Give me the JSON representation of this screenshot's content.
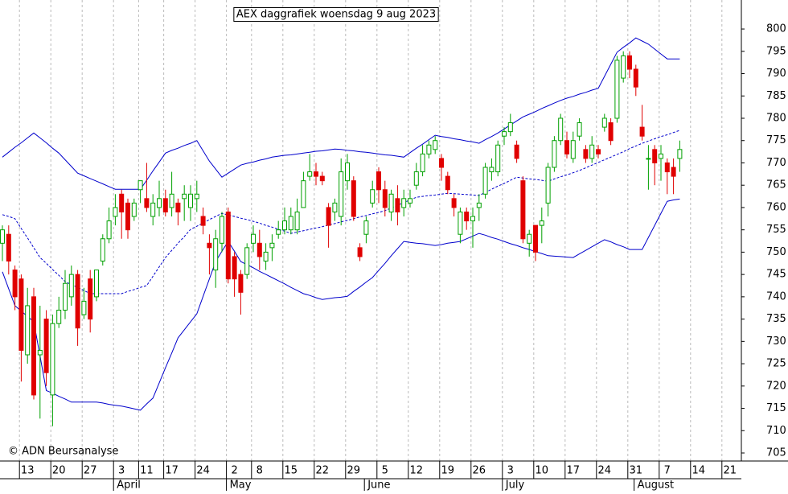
{
  "chart_data": {
    "type": "candlestick",
    "title": "AEX daggrafiek woensdag 9 aug 2023",
    "copyright": "© ADN Beursanalyse",
    "ylim": [
      703.2,
      806.5
    ],
    "yticks": [
      705,
      710,
      715,
      720,
      725,
      730,
      735,
      740,
      745,
      750,
      755,
      760,
      765,
      770,
      775,
      780,
      785,
      790,
      795,
      800
    ],
    "up_color": "#00a000",
    "down_color": "#e00000",
    "band_color": "#0000cc",
    "grid": true,
    "categories": [
      null,
      null,
      null,
      null,
      "13",
      null,
      null,
      null,
      null,
      "20",
      null,
      null,
      null,
      null,
      "27",
      null,
      null,
      null,
      null,
      "3",
      null,
      null,
      null,
      "11",
      null,
      null,
      null,
      "17",
      null,
      null,
      null,
      null,
      "24",
      null,
      null,
      null,
      null,
      "2",
      null,
      null,
      null,
      "8",
      null,
      null,
      null,
      null,
      "15",
      null,
      null,
      null,
      null,
      "22",
      null,
      null,
      null,
      null,
      "29",
      null,
      null,
      null,
      null,
      "5",
      null,
      null,
      null,
      null,
      "12",
      null,
      null,
      null,
      null,
      "19",
      null,
      null,
      null,
      null,
      "26",
      null,
      null,
      null,
      null,
      "3",
      null,
      null,
      null,
      null,
      "10",
      null,
      null,
      null,
      null,
      "17",
      null,
      null,
      null,
      null,
      "24",
      null,
      null,
      null,
      null,
      "31",
      null,
      null,
      null,
      null,
      "7",
      null,
      null,
      null,
      null,
      "14",
      null,
      null,
      null,
      null,
      "21",
      null
    ],
    "month_ticks": [
      {
        "value": 19,
        "label": "April"
      },
      {
        "value": 37,
        "label": "May"
      },
      {
        "value": 59,
        "label": "June"
      },
      {
        "value": 81,
        "label": "July"
      },
      {
        "value": 102,
        "label": "August"
      }
    ],
    "ohlc": [
      [
        752,
        756,
        748,
        755
      ],
      [
        754,
        756,
        745,
        748
      ],
      [
        746,
        747,
        737,
        740
      ],
      [
        744,
        745,
        721,
        728
      ],
      [
        727,
        742,
        725,
        738
      ],
      [
        740,
        742,
        717,
        718
      ],
      [
        727,
        738,
        712.7,
        728
      ],
      [
        735,
        737,
        720,
        723
      ],
      [
        718,
        736,
        711,
        734
      ],
      [
        734,
        740,
        733,
        737
      ],
      [
        737,
        746,
        735,
        743
      ],
      [
        740,
        747,
        738,
        745
      ],
      [
        745,
        746,
        729,
        733
      ],
      [
        736,
        742,
        735,
        739
      ],
      [
        744,
        746,
        732,
        735
      ],
      [
        740,
        746,
        739,
        746
      ],
      [
        748,
        754,
        747,
        753
      ],
      [
        753,
        760,
        752,
        757
      ],
      [
        758,
        763,
        756,
        760
      ],
      [
        763,
        764,
        753,
        759
      ],
      [
        761,
        762,
        753,
        755
      ],
      [
        758,
        762,
        757,
        761
      ],
      [
        764,
        766,
        761,
        766
      ],
      [
        762,
        770,
        759,
        760
      ],
      [
        758,
        763,
        756,
        761
      ],
      [
        760,
        766,
        758,
        762
      ],
      [
        762,
        764,
        758,
        759
      ],
      [
        760,
        768,
        758,
        763
      ],
      [
        761,
        762,
        756,
        759
      ],
      [
        762,
        765,
        757,
        763
      ],
      [
        760,
        765,
        757,
        763
      ],
      [
        762,
        766,
        759,
        763
      ],
      [
        758,
        760,
        754,
        756
      ],
      [
        752,
        754,
        745,
        751
      ],
      [
        746,
        755,
        742,
        753
      ],
      [
        752,
        759,
        750,
        758
      ],
      [
        759,
        760,
        743,
        744
      ],
      [
        749,
        750,
        740,
        744
      ],
      [
        745,
        746,
        736,
        741
      ],
      [
        745,
        752,
        744,
        751
      ],
      [
        752,
        756,
        750,
        754
      ],
      [
        752,
        755,
        746,
        749
      ],
      [
        748,
        752,
        746,
        750
      ],
      [
        751,
        754,
        748,
        752
      ],
      [
        754,
        757,
        753,
        755
      ],
      [
        755,
        760,
        754,
        757
      ],
      [
        755,
        760,
        754,
        758
      ],
      [
        755,
        762,
        754,
        759
      ],
      [
        760,
        768,
        760,
        766
      ],
      [
        767,
        772,
        766,
        768
      ],
      [
        768,
        770,
        765,
        767
      ],
      [
        767,
        768,
        765,
        766
      ],
      [
        760,
        761,
        751,
        756
      ],
      [
        759,
        762,
        757,
        761
      ],
      [
        758,
        771,
        756,
        768
      ],
      [
        766,
        772,
        764,
        770
      ],
      [
        766,
        767,
        757,
        758
      ],
      [
        751,
        752,
        748,
        749
      ],
      [
        754,
        758,
        752,
        757
      ],
      [
        761,
        766,
        760,
        764
      ],
      [
        768,
        769,
        761,
        764
      ],
      [
        764,
        766,
        758,
        760
      ],
      [
        759,
        764,
        757,
        763
      ],
      [
        762,
        765,
        756,
        759
      ],
      [
        760,
        764,
        758,
        762
      ],
      [
        761,
        764,
        760,
        762
      ],
      [
        765,
        770,
        764,
        768
      ],
      [
        768,
        774,
        767,
        772
      ],
      [
        772,
        775,
        771,
        774
      ],
      [
        773,
        776,
        772,
        775
      ],
      [
        771,
        772,
        766,
        769
      ],
      [
        767,
        768,
        763,
        764
      ],
      [
        762,
        763,
        758,
        760
      ],
      [
        754,
        760,
        752,
        759
      ],
      [
        759,
        760,
        755,
        757
      ],
      [
        757,
        760,
        751,
        758
      ],
      [
        760,
        763,
        757,
        761
      ],
      [
        763,
        770,
        762,
        769
      ],
      [
        768,
        771,
        766,
        769
      ],
      [
        768,
        775,
        767,
        774
      ],
      [
        776,
        778,
        774,
        777
      ],
      [
        777,
        781,
        776,
        779
      ],
      [
        774,
        775,
        770,
        771
      ],
      [
        766,
        767,
        752,
        753
      ],
      [
        752,
        755,
        749,
        754
      ],
      [
        756,
        756,
        748,
        750
      ],
      [
        756,
        760,
        752,
        757
      ],
      [
        761,
        770,
        758,
        769
      ],
      [
        769,
        776,
        768,
        775
      ],
      [
        775,
        781,
        774,
        780
      ],
      [
        775,
        777,
        771,
        772
      ],
      [
        771,
        777,
        770,
        775
      ],
      [
        776,
        780,
        775,
        779
      ],
      [
        773,
        774,
        770,
        771
      ],
      [
        771,
        776,
        770,
        774
      ],
      [
        773,
        774,
        771,
        772
      ],
      [
        778,
        781,
        777,
        780
      ],
      [
        779,
        780,
        774,
        775
      ],
      [
        780,
        794,
        779,
        793
      ],
      [
        789,
        795,
        788,
        794
      ],
      [
        794,
        795,
        789,
        791
      ],
      [
        791,
        792,
        785,
        787
      ],
      [
        778,
        783,
        775,
        776
      ],
      [
        771,
        774,
        764,
        771
      ],
      [
        773,
        774,
        765,
        770
      ],
      [
        771,
        774,
        766,
        772
      ],
      [
        770,
        771,
        763,
        768
      ],
      [
        769,
        771,
        763,
        767
      ],
      [
        771,
        775,
        768,
        773
      ],
      null,
      null,
      null,
      null,
      null,
      null,
      null,
      null,
      null
    ],
    "bands": {
      "upper": [
        771.3,
        772.4,
        773.5,
        774.5,
        775.6,
        776.7,
        775.6,
        774.5,
        773.3,
        772.2,
        770.7,
        769.2,
        767.7,
        767.1,
        766.5,
        765.9,
        765.3,
        764.7,
        764.1,
        764.1,
        764.1,
        764.1,
        764.1,
        766.1,
        768.2,
        770.2,
        772.2,
        772.8,
        773.3,
        773.9,
        774.4,
        775.0,
        772.7,
        770.4,
        768.6,
        766.8,
        767.7,
        768.6,
        769.5,
        769.9,
        770.2,
        770.6,
        770.9,
        771.3,
        771.5,
        771.7,
        771.8,
        772.0,
        772.2,
        772.4,
        772.6,
        772.7,
        772.9,
        773.1,
        773.0,
        772.8,
        772.7,
        772.5,
        772.4,
        772.2,
        772.0,
        771.8,
        771.7,
        771.5,
        771.3,
        772.3,
        773.3,
        774.2,
        775.2,
        776.2,
        775.9,
        775.7,
        775.4,
        775.2,
        774.9,
        774.7,
        774.4,
        775.2,
        775.9,
        776.7,
        777.6,
        778.5,
        779.4,
        780.3,
        780.9,
        781.5,
        782.2,
        782.8,
        783.4,
        784.0,
        784.5,
        784.9,
        785.4,
        785.8,
        786.3,
        786.7,
        789.4,
        792.1,
        794.8,
        795.9,
        796.9,
        798.0,
        797.3,
        796.6,
        795.5,
        794.4,
        793.3,
        793.3,
        793.3,
        null,
        null,
        null,
        null,
        null,
        null,
        null,
        null,
        null
      ],
      "middle": [
        758.4,
        758.0,
        757.5,
        755.3,
        753.2,
        751.0,
        748.8,
        747.5,
        746.1,
        744.8,
        743.4,
        742.7,
        742.1,
        741.4,
        740.7,
        740.7,
        740.7,
        740.7,
        740.7,
        740.7,
        741.2,
        741.6,
        742.1,
        742.5,
        744.6,
        746.7,
        748.8,
        750.4,
        752.0,
        753.5,
        755.1,
        755.8,
        756.5,
        757.3,
        758.0,
        758.7,
        758.3,
        758.0,
        757.6,
        757.3,
        756.9,
        756.5,
        756.0,
        755.6,
        755.1,
        754.7,
        754.2,
        754.5,
        754.8,
        755.1,
        755.4,
        755.7,
        756.1,
        756.4,
        756.8,
        757.1,
        757.5,
        757.9,
        758.2,
        758.6,
        758.9,
        759.3,
        759.9,
        760.5,
        761.1,
        761.7,
        762.3,
        762.5,
        762.7,
        762.8,
        763.0,
        763.2,
        763.1,
        763.0,
        762.9,
        762.8,
        762.7,
        763.4,
        764.1,
        764.8,
        765.4,
        766.1,
        766.8,
        766.6,
        766.4,
        766.3,
        766.1,
        765.9,
        766.4,
        766.9,
        767.3,
        767.8,
        768.3,
        768.9,
        769.5,
        770.1,
        770.7,
        771.3,
        771.9,
        772.5,
        773.2,
        773.8,
        774.4,
        774.9,
        775.4,
        775.9,
        776.3,
        776.8,
        777.3,
        null,
        null,
        null,
        null,
        null,
        null,
        null,
        null,
        null
      ],
      "lower": [
        745.6,
        741.8,
        738.0,
        736.8,
        735.6,
        734.4,
        726.7,
        719.0,
        718.4,
        717.7,
        717.1,
        716.4,
        716.4,
        716.4,
        716.4,
        716.4,
        716.2,
        715.9,
        715.7,
        715.5,
        715.2,
        714.9,
        714.6,
        716.0,
        717.3,
        720.7,
        724.1,
        727.4,
        730.8,
        732.6,
        734.4,
        736.2,
        740.1,
        744.0,
        747.9,
        750.2,
        752.4,
        750.2,
        747.9,
        747.2,
        746.5,
        745.7,
        745.0,
        744.3,
        743.6,
        742.9,
        742.1,
        741.4,
        740.7,
        740.3,
        739.8,
        739.4,
        739.6,
        739.8,
        739.9,
        740.1,
        741.2,
        742.2,
        743.3,
        744.3,
        745.9,
        747.5,
        749.2,
        750.8,
        752.4,
        752.2,
        752.0,
        751.9,
        751.7,
        751.5,
        751.7,
        752.0,
        752.2,
        752.4,
        753.0,
        753.6,
        754.2,
        753.8,
        753.3,
        752.9,
        752.4,
        751.9,
        751.5,
        751.0,
        750.6,
        750.1,
        749.7,
        749.2,
        749.1,
        749.0,
        748.9,
        748.8,
        749.6,
        750.4,
        751.2,
        752.0,
        752.8,
        752.3,
        751.7,
        751.2,
        750.6,
        750.6,
        750.6,
        753.3,
        756.0,
        758.7,
        761.4,
        761.7,
        761.9,
        null,
        null,
        null,
        null,
        null,
        null,
        null,
        null,
        null
      ]
    }
  }
}
